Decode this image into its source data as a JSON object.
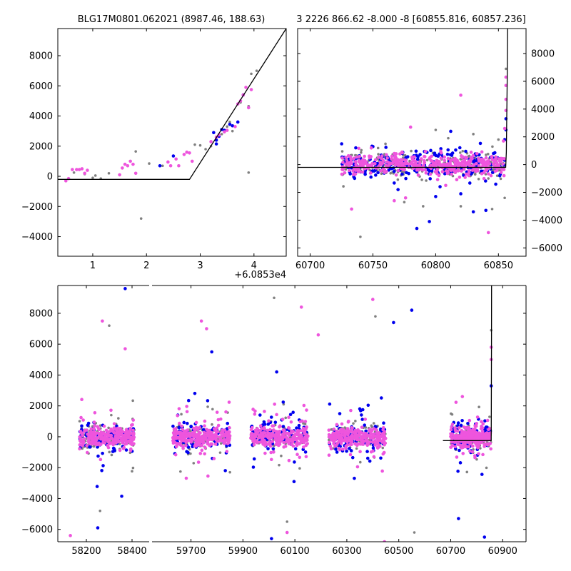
{
  "colors": {
    "background": "#ffffff",
    "series_gray": "#808080",
    "series_blue": "#0000ee",
    "series_magenta": "#ee55dd",
    "model_line": "#000000"
  },
  "chart_data": [
    {
      "type": "scatter",
      "title": "BLG17M0801.062021 (8987.46, 188.63)",
      "xlabel": "",
      "ylabel": "",
      "x_offset_text": "+6.0853e4",
      "xlim": [
        0.35,
        4.6
      ],
      "ylim": [
        -5300,
        9800
      ],
      "xticks": [
        1,
        2,
        3,
        4
      ],
      "yticks": [
        -4000,
        -2000,
        0,
        2000,
        4000,
        6000,
        8000
      ],
      "yaxis_side": "left",
      "model_line": {
        "x": [
          0.35,
          2.8,
          4.6
        ],
        "y": [
          -200,
          -200,
          9800
        ]
      },
      "series": [
        {
          "color": "gray",
          "points": [
            [
              0.65,
              250
            ],
            [
              0.85,
              150
            ],
            [
              1.0,
              -100
            ],
            [
              1.05,
              50
            ],
            [
              1.15,
              -150
            ],
            [
              1.3,
              200
            ],
            [
              1.9,
              -2800
            ],
            [
              1.8,
              1650
            ],
            [
              2.05,
              850
            ],
            [
              2.3,
              700
            ],
            [
              2.9,
              2100
            ],
            [
              3.0,
              2050
            ],
            [
              3.1,
              1800
            ],
            [
              3.3,
              2600
            ],
            [
              3.5,
              3300
            ],
            [
              3.55,
              3600
            ],
            [
              3.6,
              3000
            ],
            [
              3.75,
              4900
            ],
            [
              3.9,
              4650
            ],
            [
              3.95,
              6800
            ],
            [
              4.05,
              7000
            ],
            [
              3.9,
              250
            ],
            [
              3.2,
              2000
            ],
            [
              3.4,
              2800
            ]
          ]
        },
        {
          "color": "blue",
          "points": [
            [
              2.25,
              700
            ],
            [
              2.5,
              1350
            ],
            [
              3.25,
              2900
            ],
            [
              3.3,
              2400
            ],
            [
              3.35,
              2650
            ],
            [
              3.45,
              3050
            ],
            [
              3.55,
              3450
            ],
            [
              3.6,
              3350
            ],
            [
              3.7,
              3600
            ],
            [
              3.8,
              5400
            ],
            [
              3.3,
              2150
            ],
            [
              3.4,
              3100
            ]
          ]
        },
        {
          "color": "magenta",
          "points": [
            [
              0.5,
              -300
            ],
            [
              0.55,
              -150
            ],
            [
              0.62,
              450
            ],
            [
              0.7,
              450
            ],
            [
              0.75,
              450
            ],
            [
              0.8,
              500
            ],
            [
              0.9,
              400
            ],
            [
              0.85,
              200
            ],
            [
              1.5,
              100
            ],
            [
              1.55,
              550
            ],
            [
              1.6,
              800
            ],
            [
              1.65,
              700
            ],
            [
              1.7,
              1000
            ],
            [
              1.75,
              800
            ],
            [
              1.8,
              200
            ],
            [
              2.4,
              950
            ],
            [
              2.45,
              700
            ],
            [
              2.55,
              1150
            ],
            [
              2.6,
              700
            ],
            [
              2.7,
              1450
            ],
            [
              2.75,
              1600
            ],
            [
              2.8,
              1550
            ],
            [
              2.85,
              1000
            ],
            [
              3.2,
              2300
            ],
            [
              3.35,
              2750
            ],
            [
              3.5,
              3050
            ],
            [
              3.65,
              3300
            ],
            [
              3.7,
              4800
            ],
            [
              3.75,
              5000
            ],
            [
              3.8,
              5400
            ],
            [
              3.85,
              5900
            ],
            [
              3.9,
              4550
            ],
            [
              3.95,
              5750
            ],
            [
              3.3,
              2600
            ],
            [
              3.45,
              2950
            ]
          ]
        }
      ]
    },
    {
      "type": "scatter",
      "title": "3 2226 866.62 -8.000 -8 [60855.816, 60857.236]",
      "xlabel": "",
      "ylabel": "",
      "xlim": [
        60690,
        60872
      ],
      "ylim": [
        -6600,
        9800
      ],
      "xticks": [
        60700,
        60750,
        60800,
        60850
      ],
      "yticks": [
        -6000,
        -4000,
        -2000,
        0,
        2000,
        4000,
        6000,
        8000
      ],
      "yaxis_side": "right",
      "model_line": {
        "x": [
          60690,
          60855.8,
          60856.3,
          60857.0,
          60857.3
        ],
        "y": [
          -200,
          -200,
          900,
          6000,
          9800
        ]
      },
      "series": [
        {
          "color": "gray",
          "spread": {
            "x_range": [
              60725,
              60855
            ],
            "center": 0,
            "sd": 450,
            "count": 260
          },
          "outliers": [
            [
              60740,
              -5200
            ],
            [
              60760,
              1500
            ],
            [
              60790,
              -3000
            ],
            [
              60800,
              2500
            ],
            [
              60810,
              1900
            ],
            [
              60820,
              -3000
            ],
            [
              60830,
              2200
            ],
            [
              60845,
              -3200
            ],
            [
              60850,
              1800
            ],
            [
              60856,
              6900
            ],
            [
              60855,
              -2400
            ],
            [
              60775,
              -2700
            ]
          ]
        },
        {
          "color": "blue",
          "spread": {
            "x_range": [
              60725,
              60855
            ],
            "center": 0,
            "sd": 550,
            "count": 230
          },
          "outliers": [
            [
              60785,
              -4600
            ],
            [
              60795,
              -4100
            ],
            [
              60830,
              -3400
            ],
            [
              60840,
              -3300
            ],
            [
              60812,
              2400
            ],
            [
              60770,
              -1800
            ],
            [
              60750,
              1300
            ],
            [
              60856,
              2500
            ],
            [
              60856,
              3300
            ],
            [
              60855,
              1800
            ],
            [
              60820,
              -2100
            ],
            [
              60800,
              -2300
            ]
          ]
        },
        {
          "color": "magenta",
          "spread": {
            "x_range": [
              60725,
              60855
            ],
            "center": 0,
            "sd": 380,
            "count": 420
          },
          "outliers": [
            [
              60733,
              -3200
            ],
            [
              60767,
              -2600
            ],
            [
              60776,
              -2400
            ],
            [
              60780,
              2700
            ],
            [
              60808,
              -1500
            ],
            [
              60820,
              5000
            ],
            [
              60842,
              -4900
            ],
            [
              60856,
              5700
            ],
            [
              60856,
              6300
            ],
            [
              60856,
              4700
            ],
            [
              60856,
              3900
            ],
            [
              60855,
              2600
            ],
            [
              60854,
              1700
            ]
          ]
        }
      ]
    },
    {
      "type": "scatter",
      "title": "",
      "xlabel": "",
      "ylabel": "",
      "broken_x_axis": true,
      "segments": [
        {
          "xlim": [
            58075,
            58475
          ],
          "xticks": [
            58200,
            58400
          ]
        },
        {
          "xlim": [
            59550,
            60990
          ],
          "xticks": [
            59700,
            59900,
            60100,
            60300,
            60500,
            60700,
            60900
          ]
        }
      ],
      "ylim": [
        -6800,
        9800
      ],
      "yticks": [
        -6000,
        -4000,
        -2000,
        0,
        2000,
        4000,
        6000,
        8000
      ],
      "yaxis_side": "left",
      "model_line": {
        "x": [
          60670,
          60855.8,
          60856.3,
          60857.0,
          60857.3
        ],
        "y": [
          -250,
          -250,
          900,
          6000,
          9800
        ]
      },
      "seasons": [
        {
          "x_range": [
            58170,
            58410
          ],
          "segment": 0
        },
        {
          "x_range": [
            59630,
            59850
          ],
          "segment": 1
        },
        {
          "x_range": [
            59930,
            60150
          ],
          "segment": 1
        },
        {
          "x_range": [
            60230,
            60450
          ],
          "segment": 1
        },
        {
          "x_range": [
            60700,
            60855
          ],
          "segment": 1
        }
      ],
      "series": [
        {
          "color": "gray",
          "spread_sd": 700,
          "count_per_season": 110,
          "outliers": [
            [
              58260,
              -4800
            ],
            [
              58300,
              7200
            ],
            [
              59850,
              -2300
            ],
            [
              60020,
              9000
            ],
            [
              60070,
              -5500
            ],
            [
              60410,
              7800
            ],
            [
              60560,
              -6200
            ],
            [
              60856,
              6900
            ]
          ]
        },
        {
          "color": "blue",
          "spread_sd": 900,
          "count_per_season": 90,
          "outliers": [
            [
              58370,
              9600
            ],
            [
              58250,
              -5900
            ],
            [
              59780,
              5500
            ],
            [
              60010,
              -6600
            ],
            [
              60030,
              4200
            ],
            [
              60480,
              7400
            ],
            [
              60550,
              8200
            ],
            [
              60730,
              -5300
            ],
            [
              60830,
              -6500
            ],
            [
              60856,
              3300
            ]
          ]
        },
        {
          "color": "magenta",
          "spread_sd": 600,
          "count_per_season": 260,
          "outliers": [
            [
              58130,
              -6400
            ],
            [
              58270,
              7500
            ],
            [
              58370,
              5700
            ],
            [
              59740,
              7500
            ],
            [
              59760,
              7000
            ],
            [
              60070,
              -6200
            ],
            [
              60125,
              8400
            ],
            [
              60190,
              6600
            ],
            [
              60400,
              8900
            ],
            [
              60445,
              -6800
            ],
            [
              60856,
              5800
            ],
            [
              60856,
              5000
            ]
          ]
        }
      ]
    }
  ]
}
